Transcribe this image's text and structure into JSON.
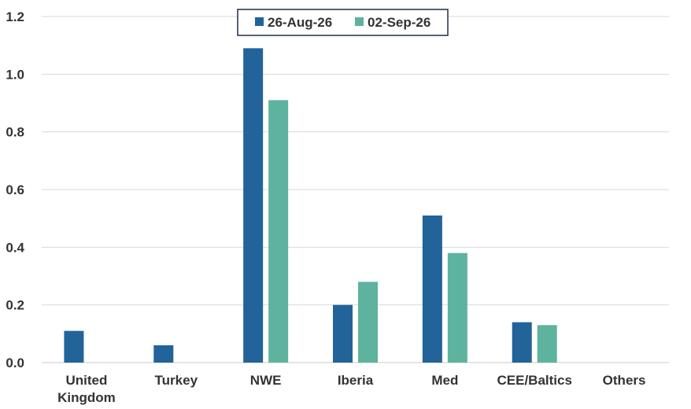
{
  "chart_data": {
    "type": "bar",
    "title": "",
    "xlabel": "",
    "ylabel": "",
    "categories": [
      [
        "United",
        "Kingdom"
      ],
      [
        "Turkey"
      ],
      [
        "NWE"
      ],
      [
        "Iberia"
      ],
      [
        "Med"
      ],
      [
        "CEE/Baltics"
      ],
      [
        "Others"
      ]
    ],
    "series": [
      {
        "name": "26-Aug-26",
        "color": "#22639a",
        "values": [
          0.11,
          0.06,
          1.09,
          0.2,
          0.51,
          0.14,
          0
        ]
      },
      {
        "name": "02-Sep-26",
        "color": "#5eb39e",
        "values": [
          0,
          0,
          0.91,
          0.28,
          0.38,
          0.13,
          0
        ]
      }
    ],
    "ylim": [
      0,
      1.2
    ],
    "yticks": [
      "0.0",
      "0.2",
      "0.4",
      "0.6",
      "0.8",
      "1.0",
      "1.2"
    ],
    "grid": true,
    "legend_position": "top-center"
  }
}
